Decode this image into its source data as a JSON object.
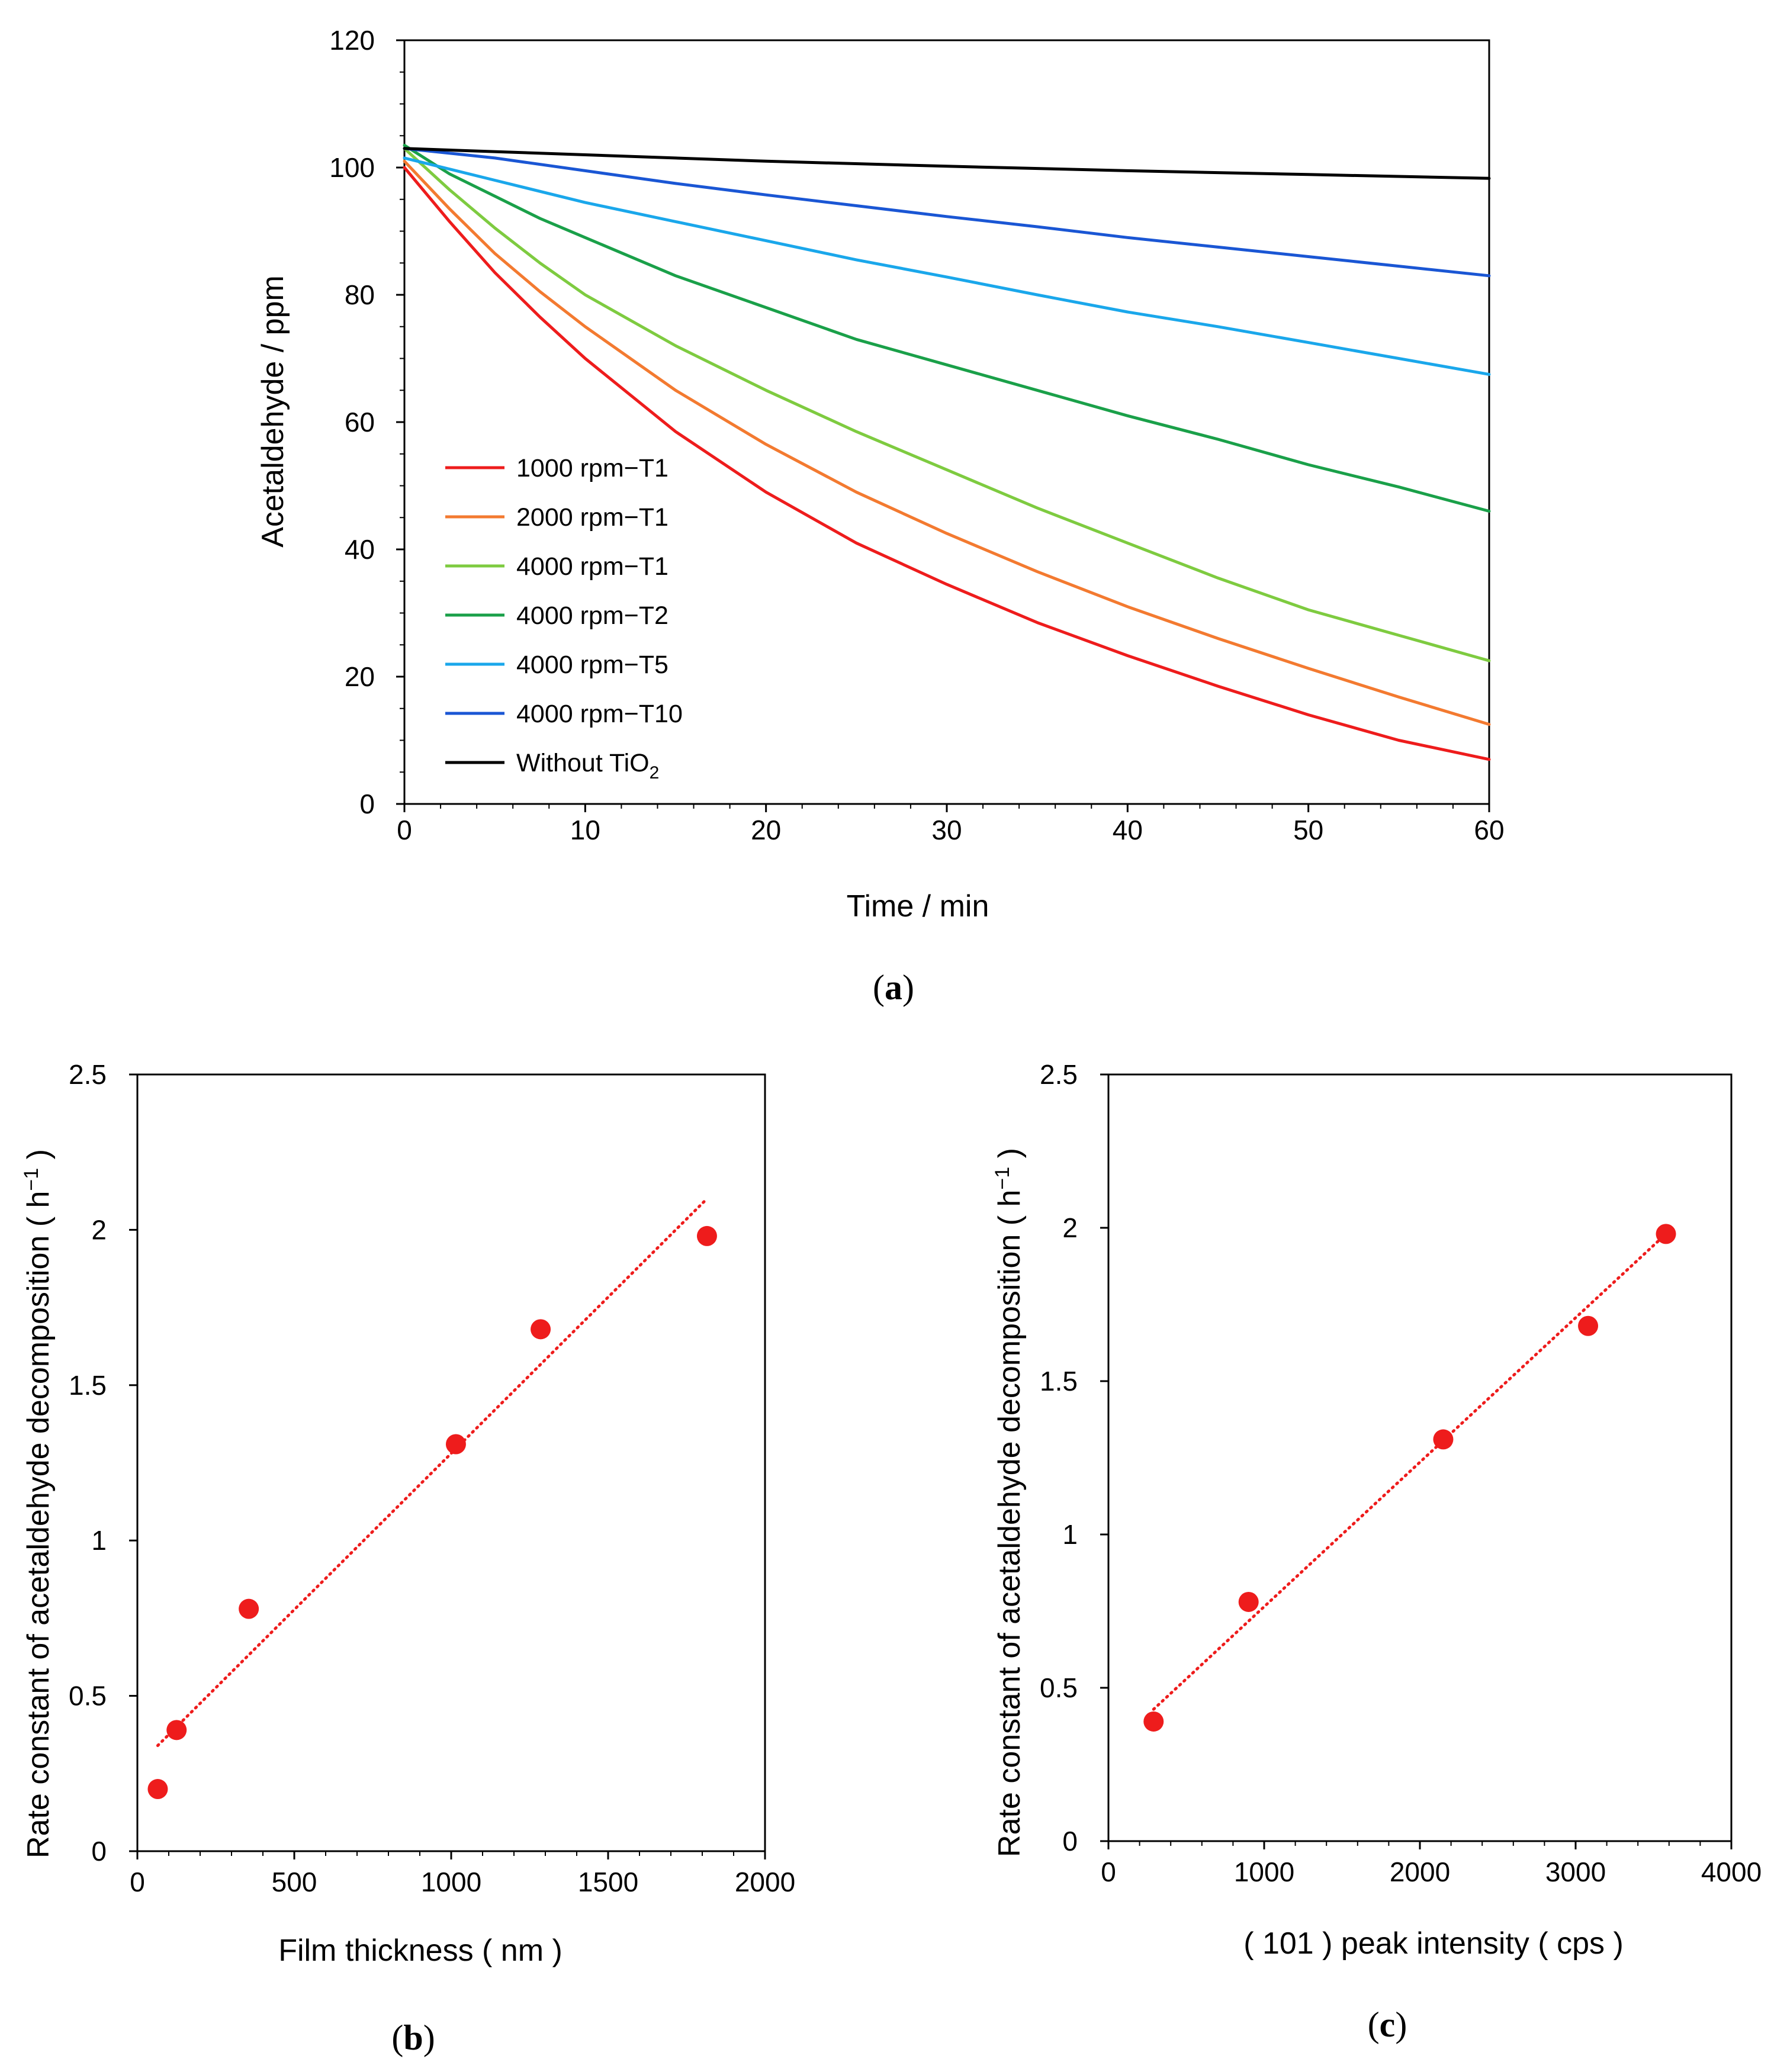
{
  "chart_data": [
    {
      "panel": "a",
      "panel_label": {
        "open": "(",
        "letter": "a",
        "close": ")"
      },
      "type": "line",
      "title": "",
      "xlabel": "Time / min",
      "ylabel": "Acetaldehyde / ppm",
      "xlim": [
        0,
        60
      ],
      "ylim": [
        0,
        120
      ],
      "xticks": [
        0,
        10,
        20,
        30,
        40,
        50,
        60
      ],
      "yticks": [
        0,
        20,
        40,
        60,
        80,
        100,
        120
      ],
      "legend_position": "lower-left",
      "series": [
        {
          "name": "1000 rpm−T1",
          "color": "#ee1c1c",
          "points": [
            [
              0,
              100
            ],
            [
              2.5,
              91.5
            ],
            [
              5,
              83.5
            ],
            [
              7.5,
              76.5
            ],
            [
              10,
              70
            ],
            [
              15,
              58.5
            ],
            [
              20,
              49
            ],
            [
              25,
              41
            ],
            [
              30,
              34.5
            ],
            [
              35,
              28.5
            ],
            [
              40,
              23.3
            ],
            [
              45,
              18.5
            ],
            [
              50,
              14
            ],
            [
              55,
              10
            ],
            [
              60,
              7
            ]
          ]
        },
        {
          "name": "2000 rpm−T1",
          "color": "#f37a30",
          "points": [
            [
              0,
              101
            ],
            [
              2.5,
              93.5
            ],
            [
              5,
              86.5
            ],
            [
              7.5,
              80.5
            ],
            [
              10,
              75
            ],
            [
              15,
              65
            ],
            [
              20,
              56.5
            ],
            [
              25,
              49
            ],
            [
              30,
              42.5
            ],
            [
              35,
              36.5
            ],
            [
              40,
              31
            ],
            [
              45,
              26
            ],
            [
              50,
              21.3
            ],
            [
              55,
              16.8
            ],
            [
              60,
              12.5
            ]
          ]
        },
        {
          "name": "4000 rpm−T1",
          "color": "#7ecb40",
          "points": [
            [
              0,
              103
            ],
            [
              2.5,
              96.5
            ],
            [
              5,
              90.5
            ],
            [
              7.5,
              85
            ],
            [
              10,
              80
            ],
            [
              15,
              72
            ],
            [
              20,
              65
            ],
            [
              25,
              58.5
            ],
            [
              30,
              52.5
            ],
            [
              35,
              46.5
            ],
            [
              40,
              41
            ],
            [
              45,
              35.5
            ],
            [
              50,
              30.5
            ],
            [
              55,
              26.5
            ],
            [
              60,
              22.5
            ]
          ]
        },
        {
          "name": "4000 rpm−T2",
          "color": "#1aa049",
          "points": [
            [
              0,
              103.5
            ],
            [
              2.5,
              99
            ],
            [
              5,
              95.5
            ],
            [
              7.5,
              92
            ],
            [
              10,
              89
            ],
            [
              15,
              83
            ],
            [
              20,
              78
            ],
            [
              25,
              73
            ],
            [
              30,
              69
            ],
            [
              35,
              65
            ],
            [
              40,
              61
            ],
            [
              45,
              57.3
            ],
            [
              50,
              53.3
            ],
            [
              55,
              49.8
            ],
            [
              60,
              46
            ]
          ]
        },
        {
          "name": "4000 rpm−T5",
          "color": "#1aa7eb",
          "points": [
            [
              0,
              101.5
            ],
            [
              5,
              98
            ],
            [
              10,
              94.5
            ],
            [
              15,
              91.5
            ],
            [
              20,
              88.5
            ],
            [
              25,
              85.5
            ],
            [
              30,
              82.8
            ],
            [
              35,
              80
            ],
            [
              40,
              77.3
            ],
            [
              45,
              75
            ],
            [
              50,
              72.5
            ],
            [
              55,
              70
            ],
            [
              60,
              67.5
            ]
          ]
        },
        {
          "name": "4000 rpm−T10",
          "color": "#1a56d4",
          "points": [
            [
              0,
              103
            ],
            [
              5,
              101.5
            ],
            [
              10,
              99.5
            ],
            [
              15,
              97.5
            ],
            [
              20,
              95.7
            ],
            [
              25,
              94
            ],
            [
              30,
              92.3
            ],
            [
              35,
              90.7
            ],
            [
              40,
              89
            ],
            [
              45,
              87.5
            ],
            [
              50,
              86
            ],
            [
              55,
              84.5
            ],
            [
              60,
              83
            ]
          ]
        },
        {
          "name": "Without TiO",
          "name_sub": "2",
          "color": "#000000",
          "points": [
            [
              0,
              103
            ],
            [
              10,
              102
            ],
            [
              20,
              101
            ],
            [
              30,
              100.2
            ],
            [
              40,
              99.5
            ],
            [
              50,
              98.9
            ],
            [
              60,
              98.3
            ]
          ]
        }
      ]
    },
    {
      "panel": "b",
      "panel_label": {
        "open": "(",
        "letter": "b",
        "close": ")"
      },
      "type": "scatter",
      "title": "",
      "xlabel": "Film thickness ( nm )",
      "ylabel": "Rate constant of acetaldehyde decomposition ( h",
      "ylabel_sup": "−1",
      "ylabel_end": " )",
      "xlim": [
        0,
        2000
      ],
      "ylim": [
        0,
        2.5
      ],
      "xticks": [
        0,
        500,
        1000,
        1500,
        2000
      ],
      "yticks": [
        0,
        0.5,
        1,
        1.5,
        2,
        2.5
      ],
      "xtick_labels": [
        "0",
        "500",
        "1000",
        "1500",
        "2000"
      ],
      "ytick_labels": [
        "0",
        "0.5",
        "1",
        "1.5",
        "2",
        "2.5"
      ],
      "marker_color": "#ee1c1c",
      "points": [
        [
          65,
          0.2
        ],
        [
          125,
          0.39
        ],
        [
          355,
          0.78
        ],
        [
          1015,
          1.31
        ],
        [
          1285,
          1.68
        ],
        [
          1815,
          1.98
        ]
      ],
      "trendline": {
        "style": "dotted",
        "color": "#ee1c1c",
        "from": [
          65,
          0.34
        ],
        "to": [
          1815,
          2.1
        ]
      }
    },
    {
      "panel": "c",
      "panel_label": {
        "open": "(",
        "letter": "c",
        "close": ")"
      },
      "type": "scatter",
      "title": "",
      "xlabel": "( 101 ) peak intensity ( cps )",
      "ylabel": "Rate constant of acetaldehyde decomposition ( h",
      "ylabel_sup": "−1",
      "ylabel_end": " )",
      "xlim": [
        0,
        4000
      ],
      "ylim": [
        0,
        2.5
      ],
      "xticks": [
        0,
        1000,
        2000,
        3000,
        4000
      ],
      "yticks": [
        0,
        0.5,
        1,
        1.5,
        2,
        2.5
      ],
      "xtick_labels": [
        "0",
        "1000",
        "2000",
        "3000",
        "4000"
      ],
      "ytick_labels": [
        "0",
        "0.5",
        "1",
        "1.5",
        "2",
        "2.5"
      ],
      "marker_color": "#ee1c1c",
      "points": [
        [
          290,
          0.39
        ],
        [
          900,
          0.78
        ],
        [
          2150,
          1.31
        ],
        [
          3080,
          1.68
        ],
        [
          3580,
          1.98
        ]
      ],
      "trendline": {
        "style": "dotted",
        "color": "#ee1c1c",
        "from": [
          290,
          0.43
        ],
        "to": [
          3580,
          1.98
        ]
      }
    }
  ]
}
